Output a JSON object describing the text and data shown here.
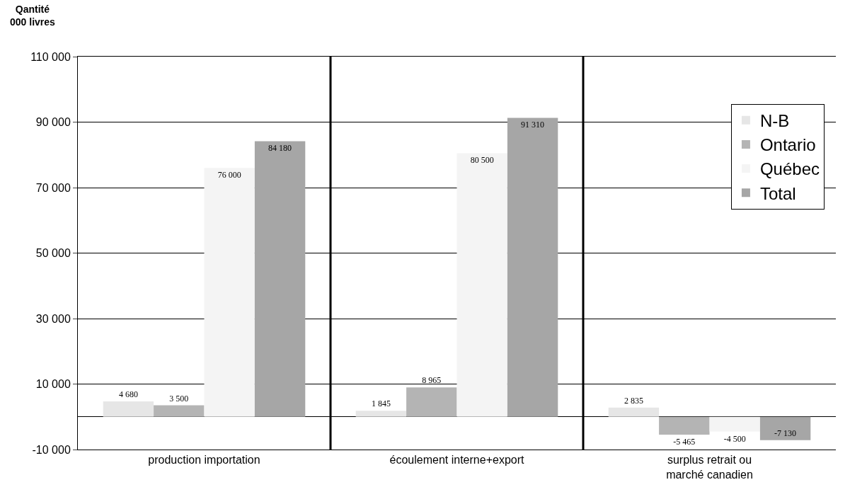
{
  "chart_data": {
    "type": "bar",
    "ylabel": "Qantité\n000 livres",
    "categories": [
      "production importation",
      "écoulement interne+export",
      "surplus retrait ou marché canadien"
    ],
    "series": [
      {
        "name": "N-B",
        "color": "#e6e6e6",
        "values": [
          4680,
          1845,
          2835
        ],
        "value_labels": [
          "4 680",
          "1 845",
          "2 835"
        ]
      },
      {
        "name": "Ontario",
        "color": "#b4b4b4",
        "values": [
          3500,
          8965,
          -5465
        ],
        "value_labels": [
          "3 500",
          "8 965",
          "-5 465"
        ]
      },
      {
        "name": "Québec",
        "color": "#f4f4f4",
        "values": [
          76000,
          80500,
          -4500
        ],
        "value_labels": [
          "76 000",
          "80 500",
          "-4 500"
        ]
      },
      {
        "name": "Total",
        "color": "#a6a6a6",
        "values": [
          84180,
          91310,
          -7130
        ],
        "value_labels": [
          "84 180",
          "91 310",
          "-7 130"
        ]
      }
    ],
    "ylim": [
      -10000,
      110000
    ],
    "yticks": [
      {
        "value": -10000,
        "label": "-10 000"
      },
      {
        "value": 10000,
        "label": "10 000"
      },
      {
        "value": 30000,
        "label": "30 000"
      },
      {
        "value": 50000,
        "label": "50 000"
      },
      {
        "value": 70000,
        "label": "70 000"
      },
      {
        "value": 90000,
        "label": "90 000"
      },
      {
        "value": 110000,
        "label": "110 000"
      }
    ],
    "grid": "y",
    "legend": "top right"
  }
}
